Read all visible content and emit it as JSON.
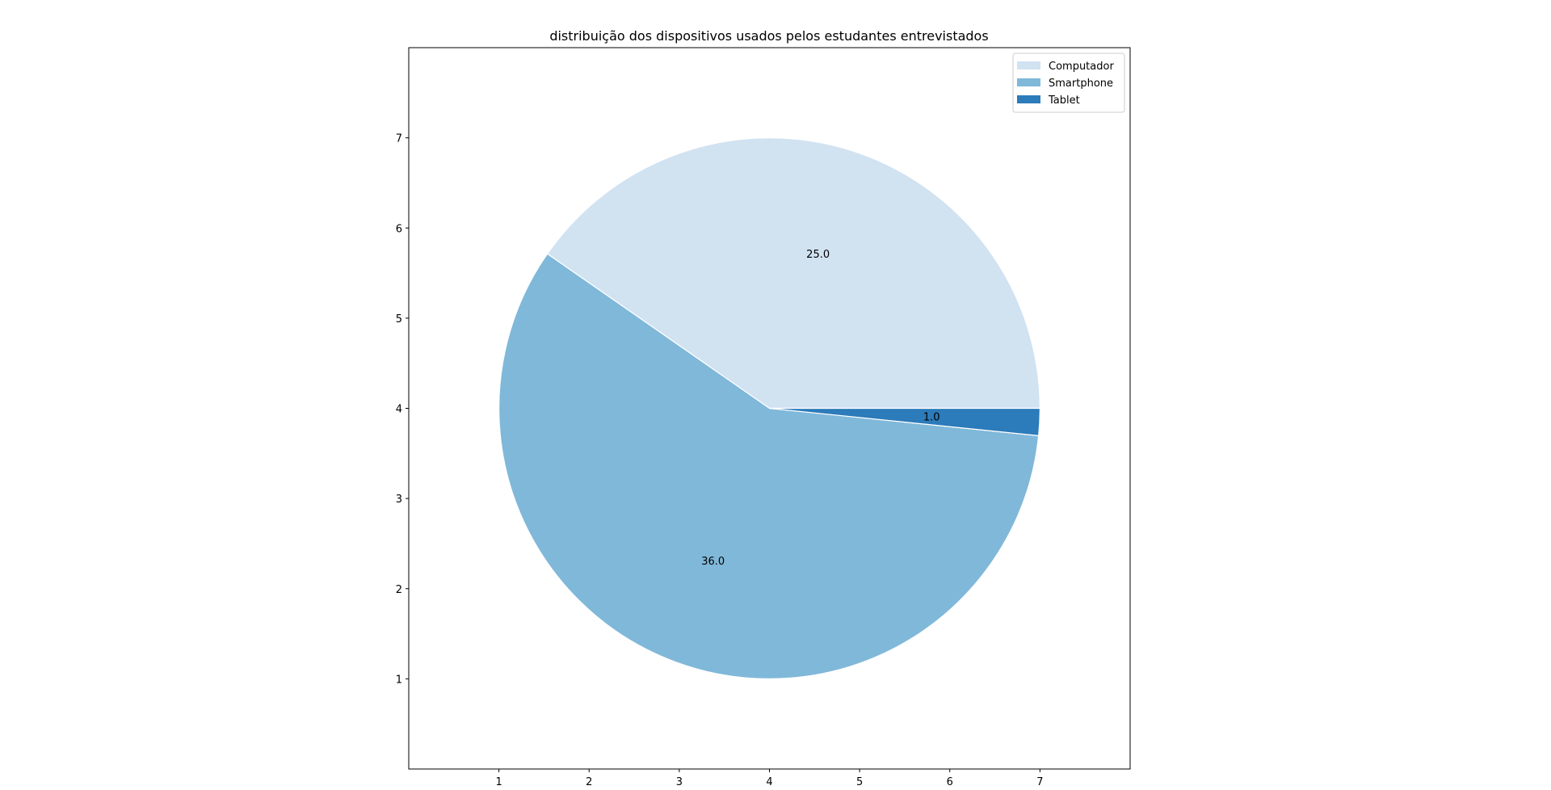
{
  "chart_data": {
    "type": "pie",
    "title": "distribuição dos dispositivos usados pelos estudantes entrevistados",
    "categories": [
      "Computador",
      "Smartphone",
      "Tablet"
    ],
    "values": [
      25.0,
      36.0,
      1.0
    ],
    "value_labels": [
      "25.0",
      "36.0",
      "1.0"
    ],
    "colors": [
      "#d1e2f1",
      "#80b8d9",
      "#2c7bba"
    ],
    "xticks": [
      "1",
      "2",
      "3",
      "4",
      "5",
      "6",
      "7"
    ],
    "yticks": [
      "1",
      "2",
      "3",
      "4",
      "5",
      "6",
      "7"
    ],
    "xlim": [
      0,
      8
    ],
    "ylim": [
      0,
      8
    ],
    "center": [
      4,
      4
    ],
    "radius": 3,
    "start_angle_deg": 0,
    "legend_position": "top-right",
    "grid": false
  }
}
